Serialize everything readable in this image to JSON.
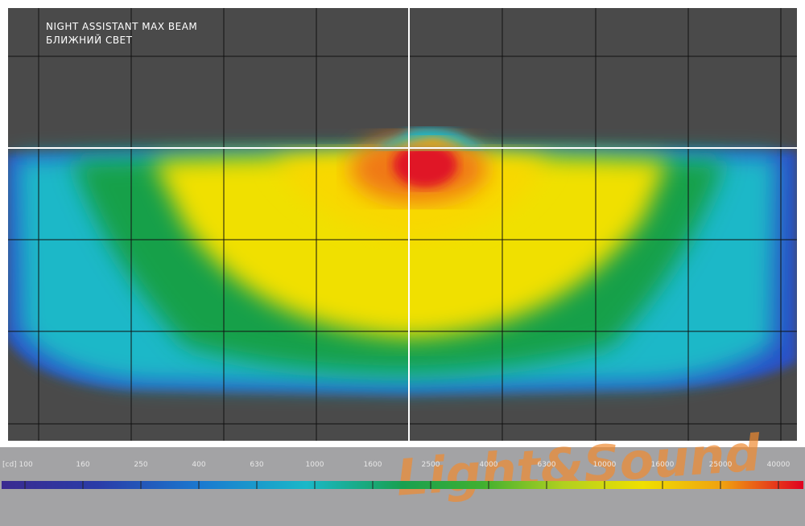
{
  "header": {
    "title": "NIGHT ASSISTANT MAX BEAM",
    "subtitle": "БЛИЖНИЙ СВЕТ"
  },
  "scale": {
    "labels": [
      "[cd] 100",
      "160",
      "250",
      "400",
      "630",
      "1000",
      "1600",
      "2500",
      "4000",
      "6300",
      "10000",
      "16000",
      "25000",
      "40000"
    ]
  },
  "watermark": "Light&Sound"
}
